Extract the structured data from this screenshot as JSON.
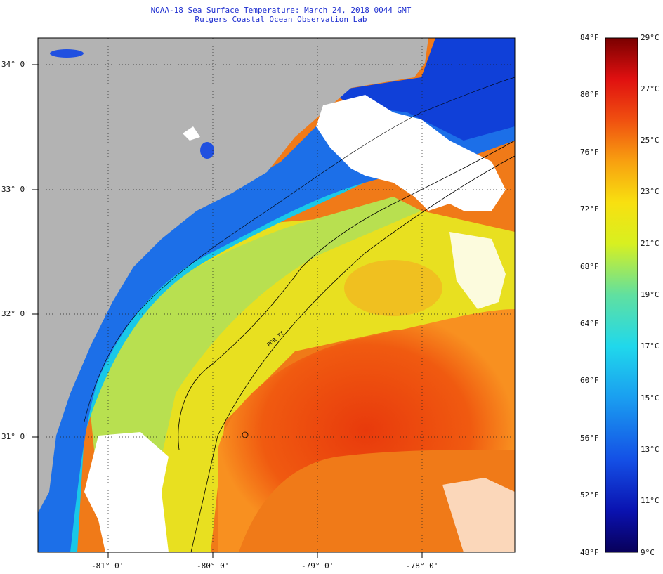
{
  "title": "NOAA-18 Sea Surface Temperature:  March 24, 2018 0044 GMT",
  "subtitle": "Rutgers Coastal Ocean Observation Lab",
  "map": {
    "lat_labels": [
      "34° 0'",
      "33° 0'",
      "32° 0'",
      "31° 0'"
    ],
    "lon_labels": [
      "-81° 0'",
      "-80° 0'",
      "-79° 0'",
      "-78° 0'"
    ],
    "colors": {
      "land": "#b3b3b3",
      "cloud": "#ffffff",
      "gulf_stream": "#e8420f",
      "shelf": "#19c8e8",
      "frame": "#000000"
    },
    "contour_label": "PDR TT"
  },
  "colorbar": {
    "fahrenheit_labels": [
      "84°F",
      "80°F",
      "76°F",
      "72°F",
      "68°F",
      "64°F",
      "60°F",
      "56°F",
      "52°F",
      "48°F"
    ],
    "celsius_labels": [
      "29°C",
      "27°C",
      "25°C",
      "23°C",
      "21°C",
      "19°C",
      "17°C",
      "15°C",
      "13°C",
      "11°C",
      "9°C"
    ],
    "range_f": [
      48,
      84
    ],
    "range_c": [
      9,
      29
    ]
  }
}
